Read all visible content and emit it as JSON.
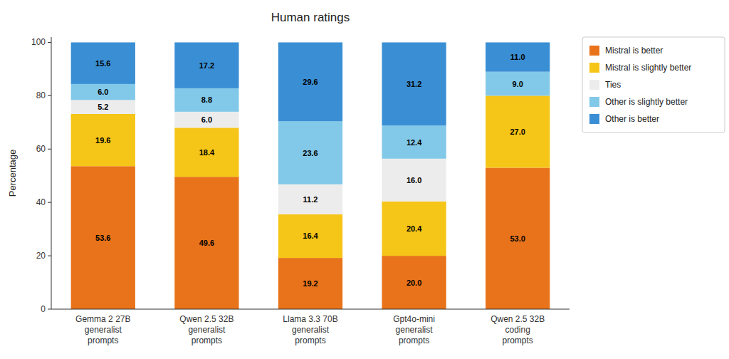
{
  "chart_data": {
    "type": "bar",
    "stacked": true,
    "title": "Human ratings",
    "ylabel": "Percentage",
    "categories": [
      "Gemma 2 27B\ngeneralist\nprompts",
      "Qwen 2.5 32B\ngeneralist\nprompts",
      "Llama 3.3 70B\ngeneralist\nprompts",
      "Gpt4o-mini\ngeneralist\nprompts",
      "Qwen 2.5 32B\ncoding\nprompts"
    ],
    "series": [
      {
        "name": "Mistral is better",
        "color": "#e8731a",
        "values": [
          53.6,
          49.6,
          19.2,
          20.0,
          53.0
        ],
        "value_labels": [
          "53.6",
          "49.6",
          "19.2",
          "20.0",
          "53.0"
        ]
      },
      {
        "name": "Mistral is slightly better",
        "color": "#f5c518",
        "values": [
          19.6,
          18.4,
          16.4,
          20.4,
          27.0
        ],
        "value_labels": [
          "19.6",
          "18.4",
          "16.4",
          "20.4",
          "27.0"
        ]
      },
      {
        "name": "Ties",
        "color": "#ececec",
        "values": [
          5.2,
          6.0,
          11.2,
          16.0,
          0.0
        ],
        "value_labels": [
          "5.2",
          "6.0",
          "11.2",
          "16.0",
          null
        ]
      },
      {
        "name": "Other is slightly better",
        "color": "#82c8e8",
        "values": [
          6.0,
          8.8,
          23.6,
          12.4,
          9.0
        ],
        "value_labels": [
          "6.0",
          "8.8",
          "23.6",
          "12.4",
          "9.0"
        ]
      },
      {
        "name": "Other is better",
        "color": "#3a8fd4",
        "values": [
          15.6,
          17.2,
          29.6,
          31.2,
          11.0
        ],
        "value_labels": [
          "15.6",
          "17.2",
          "29.6",
          "31.2",
          "11.0"
        ]
      }
    ],
    "ylim": [
      0,
      102
    ],
    "yticks": [
      0,
      20,
      40,
      60,
      80,
      100
    ],
    "grid": false,
    "legend": "right",
    "data_labels": true
  }
}
